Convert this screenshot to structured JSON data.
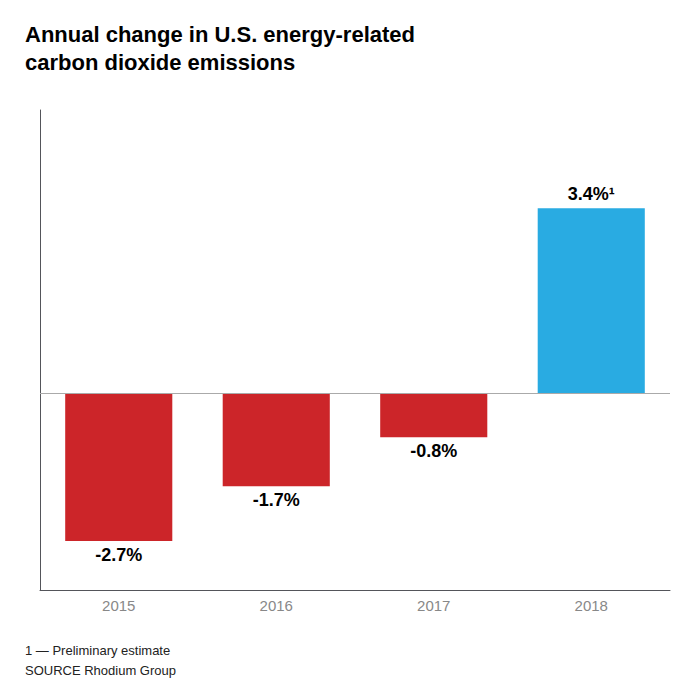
{
  "chart_data": {
    "type": "bar",
    "title": "Annual change in U.S. energy-related\ncarbon dioxide emissions",
    "categories": [
      "2015",
      "2016",
      "2017",
      "2018"
    ],
    "values": [
      -2.7,
      -1.7,
      -0.8,
      3.4
    ],
    "value_labels": [
      "-2.7%",
      "-1.7%",
      "-0.8%",
      "3.4%¹"
    ],
    "colors": [
      "#cc2529",
      "#cc2529",
      "#cc2529",
      "#29abe2"
    ],
    "ylim": [
      -3.6,
      5.2
    ],
    "annotations": [
      "1 — Preliminary estimate",
      "SOURCE Rhodium Group"
    ],
    "data_labels": true,
    "tick_labels": "x",
    "grid": false
  }
}
